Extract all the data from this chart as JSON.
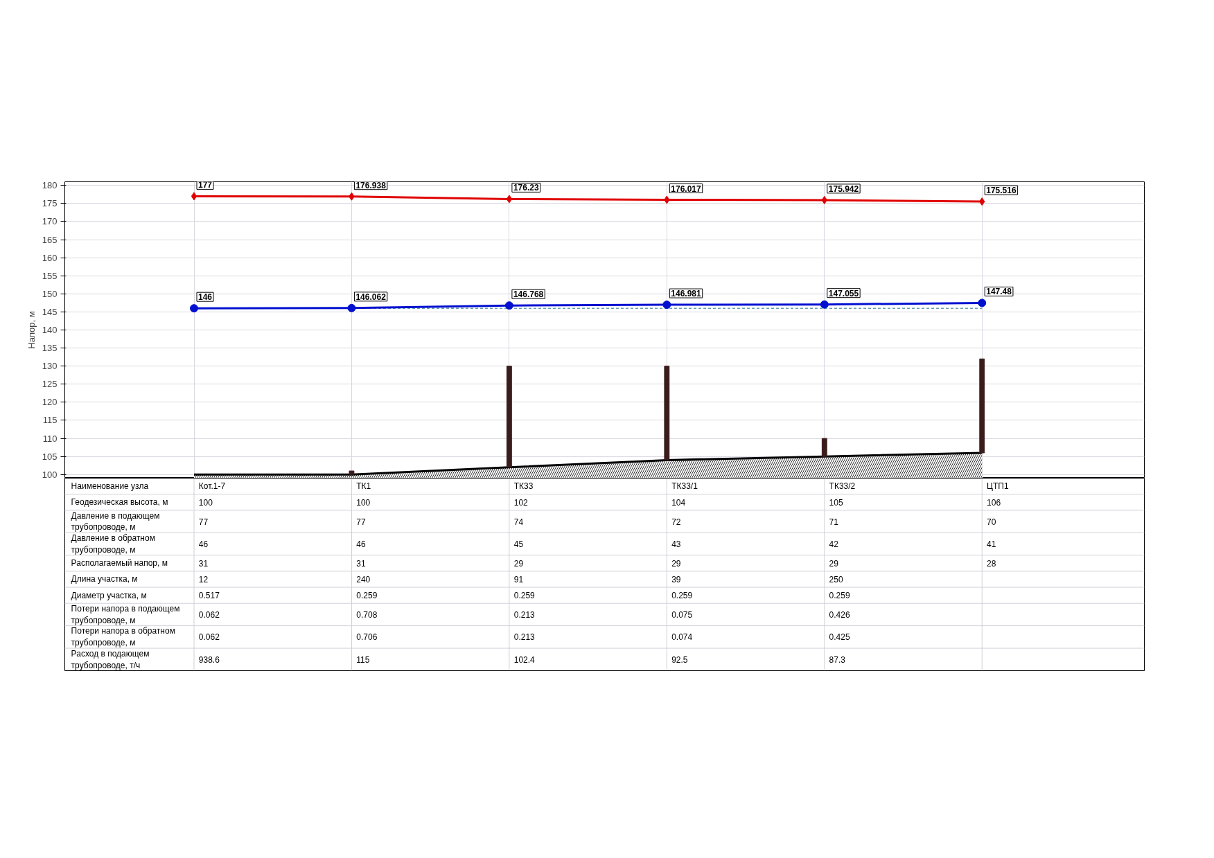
{
  "chart_data": {
    "type": "line",
    "ylabel": "Напор, м",
    "xlabel": "Наименование узла",
    "categories": [
      "Кот.1-7",
      "ТК1",
      "ТК33",
      "ТК33/1",
      "ТК33/2",
      "ЦТП1"
    ],
    "ylim": [
      99,
      181
    ],
    "yticks": [
      100,
      105,
      110,
      115,
      120,
      125,
      130,
      135,
      140,
      145,
      150,
      155,
      160,
      165,
      170,
      175,
      180
    ],
    "grid": true,
    "series": [
      {
        "type": "area",
        "color": "#000000",
        "values": [
          100,
          100,
          102,
          104,
          105,
          106
        ]
      },
      {
        "type": "bar",
        "color": "#3a1c1c",
        "base": [
          null,
          100,
          102,
          104,
          105,
          106
        ],
        "values": [
          null,
          1,
          28,
          26,
          5,
          26
        ]
      },
      {
        "color": "#1f6f8f",
        "line_style": "dashed",
        "marker": "none",
        "values": [
          146,
          146,
          146,
          146,
          146,
          146
        ]
      },
      {
        "color": "#e00000",
        "marker": "diamond",
        "values": [
          177,
          176.938,
          176.23,
          176.017,
          175.942,
          175.516
        ],
        "value_labels": [
          "177",
          "176.938",
          "176.23",
          "176.017",
          "175.942",
          "175.516"
        ]
      },
      {
        "color": "#0010d0",
        "marker": "circle",
        "values": [
          146,
          146.062,
          146.768,
          146.981,
          147.055,
          147.48
        ],
        "value_labels": [
          "146",
          "146.062",
          "146.768",
          "146.981",
          "147.055",
          "147.48"
        ]
      },
      {
        "type": "other",
        "name": "Геодезическая высота, м",
        "values": [
          null,
          null,
          null,
          null,
          null,
          null
        ],
        "value_labels": [
          "100",
          "100",
          "102",
          "104",
          "105",
          "106"
        ]
      },
      {
        "type": "other",
        "name": "Давление в подающем\nтрубопроводе, м",
        "values": [
          null,
          null,
          null,
          null,
          null,
          null
        ],
        "value_labels": [
          "77",
          "77",
          "74",
          "72",
          "71",
          "70"
        ]
      },
      {
        "type": "other",
        "name": "Давление в обратном\nтрубопроводе, м",
        "values": [
          null,
          null,
          null,
          null,
          null,
          null
        ],
        "value_labels": [
          "46",
          "46",
          "45",
          "43",
          "42",
          "41"
        ]
      },
      {
        "type": "other",
        "name": "Располагаемый напор, м",
        "values": [
          null,
          null,
          null,
          null,
          null,
          null
        ],
        "value_labels": [
          "31",
          "31",
          "29",
          "29",
          "29",
          "28"
        ]
      },
      {
        "type": "other",
        "name": "Длина участка, м",
        "values": [
          null,
          null,
          null,
          null,
          null,
          null
        ],
        "value_labels": [
          "12",
          "240",
          "91",
          "39",
          "250",
          null
        ]
      },
      {
        "type": "other",
        "name": "Диаметр участка, м",
        "values": [
          null,
          null,
          null,
          null,
          null,
          null
        ],
        "value_labels": [
          "0.517",
          "0.259",
          "0.259",
          "0.259",
          "0.259",
          null
        ]
      },
      {
        "type": "other",
        "name": "Потери напора в подающем\nтрубопроводе, м",
        "values": [
          null,
          null,
          null,
          null,
          null,
          null
        ],
        "value_labels": [
          "0.062",
          "0.708",
          "0.213",
          "0.075",
          "0.426",
          null
        ]
      },
      {
        "type": "other",
        "name": "Потери напора в обратном\nтрубопроводе, м",
        "values": [
          null,
          null,
          null,
          null,
          null,
          null
        ],
        "value_labels": [
          "0.062",
          "0.706",
          "0.213",
          "0.074",
          "0.425",
          null
        ]
      },
      {
        "type": "other",
        "name": "Расход в подающем\nтрубопроводе, т/ч",
        "values": [
          null,
          null,
          null,
          null,
          null,
          null
        ],
        "value_labels": [
          "938.6",
          "115",
          "102.4",
          "92.5",
          "87.3",
          null
        ]
      }
    ]
  }
}
